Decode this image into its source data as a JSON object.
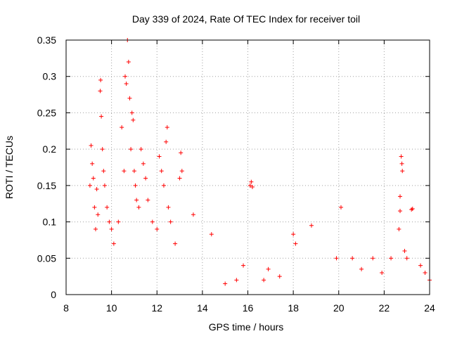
{
  "chart_data": {
    "type": "scatter",
    "title": "Day 339 of 2024, Rate Of TEC Index for receiver toil",
    "xlabel": "GPS time / hours",
    "ylabel": "ROTI / TECUs",
    "xlim": [
      8,
      24
    ],
    "ylim": [
      0,
      0.35
    ],
    "xticks": [
      "8",
      "10",
      "12",
      "14",
      "16",
      "18",
      "20",
      "22",
      "24"
    ],
    "yticks": [
      "0",
      "0.05",
      "0.1",
      "0.15",
      "0.2",
      "0.25",
      "0.3",
      "0.35"
    ],
    "grid": true,
    "marker": "+",
    "marker_color": "#ff0000",
    "series": [
      {
        "name": "ROTI",
        "points": [
          [
            9.05,
            0.15
          ],
          [
            9.1,
            0.205
          ],
          [
            9.15,
            0.18
          ],
          [
            9.2,
            0.16
          ],
          [
            9.25,
            0.12
          ],
          [
            9.3,
            0.09
          ],
          [
            9.35,
            0.145
          ],
          [
            9.4,
            0.11
          ],
          [
            9.5,
            0.28
          ],
          [
            9.52,
            0.295
          ],
          [
            9.55,
            0.245
          ],
          [
            9.6,
            0.2
          ],
          [
            9.65,
            0.17
          ],
          [
            9.7,
            0.15
          ],
          [
            9.8,
            0.12
          ],
          [
            9.9,
            0.1
          ],
          [
            10.0,
            0.09
          ],
          [
            10.1,
            0.07
          ],
          [
            10.3,
            0.1
          ],
          [
            10.45,
            0.23
          ],
          [
            10.55,
            0.17
          ],
          [
            10.6,
            0.3
          ],
          [
            10.65,
            0.29
          ],
          [
            10.7,
            0.35
          ],
          [
            10.75,
            0.32
          ],
          [
            10.8,
            0.27
          ],
          [
            10.85,
            0.2
          ],
          [
            10.9,
            0.25
          ],
          [
            10.95,
            0.24
          ],
          [
            11.0,
            0.17
          ],
          [
            11.05,
            0.15
          ],
          [
            11.1,
            0.13
          ],
          [
            11.2,
            0.12
          ],
          [
            11.3,
            0.2
          ],
          [
            11.4,
            0.18
          ],
          [
            11.5,
            0.16
          ],
          [
            11.6,
            0.13
          ],
          [
            11.8,
            0.1
          ],
          [
            12.0,
            0.09
          ],
          [
            12.1,
            0.19
          ],
          [
            12.2,
            0.17
          ],
          [
            12.3,
            0.15
          ],
          [
            12.4,
            0.21
          ],
          [
            12.45,
            0.23
          ],
          [
            12.5,
            0.12
          ],
          [
            12.6,
            0.1
          ],
          [
            12.8,
            0.07
          ],
          [
            13.0,
            0.16
          ],
          [
            13.05,
            0.195
          ],
          [
            13.1,
            0.17
          ],
          [
            13.6,
            0.11
          ],
          [
            14.4,
            0.083
          ],
          [
            16.1,
            0.15
          ],
          [
            16.2,
            0.148
          ],
          [
            16.15,
            0.155
          ],
          [
            18.0,
            0.083
          ],
          [
            18.1,
            0.07
          ],
          [
            18.8,
            0.095
          ],
          [
            20.1,
            0.12
          ],
          [
            22.7,
            0.135
          ],
          [
            22.75,
            0.19
          ],
          [
            22.8,
            0.17
          ],
          [
            22.78,
            0.18
          ],
          [
            22.7,
            0.115
          ],
          [
            22.65,
            0.09
          ],
          [
            23.2,
            0.117
          ],
          [
            23.25,
            0.118
          ],
          [
            22.9,
            0.06
          ],
          [
            23.0,
            0.05
          ],
          [
            19.9,
            0.05
          ],
          [
            20.6,
            0.05
          ],
          [
            21.0,
            0.035
          ],
          [
            21.5,
            0.05
          ],
          [
            21.9,
            0.03
          ],
          [
            22.3,
            0.05
          ],
          [
            23.6,
            0.04
          ],
          [
            23.8,
            0.03
          ],
          [
            24.0,
            0.02
          ],
          [
            17.4,
            0.025
          ],
          [
            16.7,
            0.02
          ],
          [
            15.0,
            0.015
          ],
          [
            15.5,
            0.02
          ],
          [
            15.8,
            0.04
          ],
          [
            16.9,
            0.035
          ]
        ]
      }
    ]
  }
}
